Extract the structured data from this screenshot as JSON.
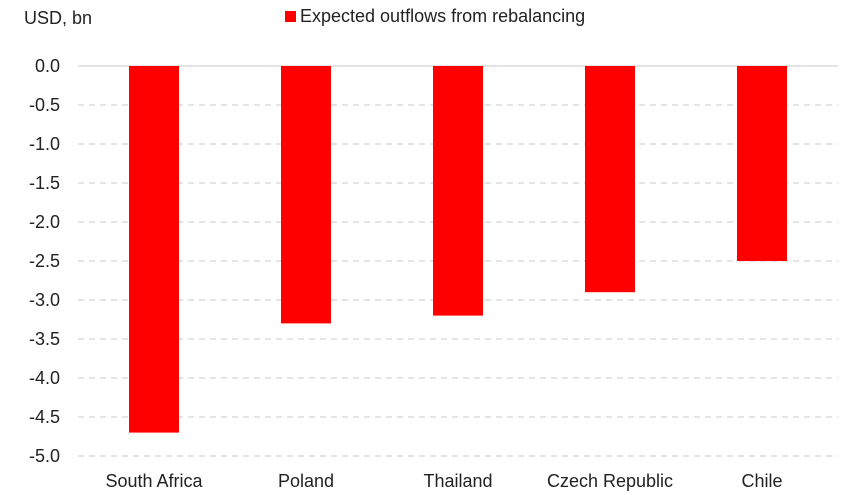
{
  "chart_data": {
    "type": "bar",
    "ylabel": "USD, bn",
    "categories": [
      "South Africa",
      "Poland",
      "Thailand",
      "Czech Republic",
      "Chile"
    ],
    "series": [
      {
        "name": "Expected outflows from rebalancing",
        "values": [
          -4.7,
          -3.3,
          -3.2,
          -2.9,
          -2.5
        ],
        "color": "#ff0000"
      }
    ],
    "ylim": [
      -5.0,
      0.0
    ],
    "yticks": [
      "0.0",
      "-0.5",
      "-1.0",
      "-1.5",
      "-2.0",
      "-2.5",
      "-3.0",
      "-3.5",
      "-4.0",
      "-4.5",
      "-5.0"
    ],
    "grid": true,
    "grid_color": "#c8c8c8",
    "legend_position": "top-center"
  }
}
